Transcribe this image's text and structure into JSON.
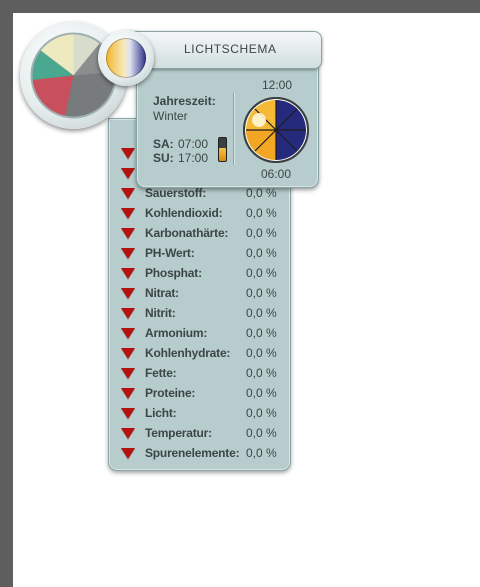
{
  "light_schema": {
    "title": "LICHTSCHEMA",
    "season_label": "Jahreszeit:",
    "season_value": "Winter",
    "sa_label": "SA:",
    "sa_time": "07:00",
    "su_label": "SU:",
    "su_time": "17:00",
    "time_top": "12:00",
    "time_bottom": "06:00"
  },
  "parameters": {
    "items": [
      {
        "label": "Sauerstoff:",
        "value": "0,0 %"
      },
      {
        "label": "Kohlendioxid:",
        "value": "0,0 %"
      },
      {
        "label": "Karbonathärte:",
        "value": "0,0 %"
      },
      {
        "label": "PH-Wert:",
        "value": "0,0 %"
      },
      {
        "label": "Phosphat:",
        "value": "0,0 %"
      },
      {
        "label": "Nitrat:",
        "value": "0,0 %"
      },
      {
        "label": "Nitrit:",
        "value": "0,0 %"
      },
      {
        "label": "Armonium:",
        "value": "0,0 %"
      },
      {
        "label": "Kohlenhydrate:",
        "value": "0,0 %"
      },
      {
        "label": "Fette:",
        "value": "0,0 %"
      },
      {
        "label": "Proteine:",
        "value": "0,0 %"
      },
      {
        "label": "Licht:",
        "value": "0,0 %"
      },
      {
        "label": "Temperatur:",
        "value": "0,0 %"
      },
      {
        "label": "Spurenelemente:",
        "value": "0,0 %"
      }
    ]
  },
  "colors": {
    "panel": "#b7cdcd",
    "arrow": "#b3120e",
    "text": "#3c4647"
  },
  "icons": {
    "arrow": "down-triangle-icon",
    "pie": "pie-chart-icon",
    "sun": "sun-icon",
    "clock": "day-night-clock-icon"
  }
}
